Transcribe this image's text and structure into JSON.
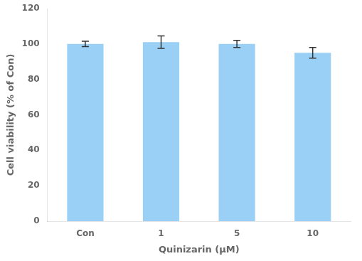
{
  "chart_data": {
    "type": "bar",
    "categories": [
      "Con",
      "1",
      "5",
      "10"
    ],
    "values": [
      100.0,
      101.0,
      100.0,
      95.0
    ],
    "errors": [
      1.5,
      3.5,
      2.0,
      3.0
    ],
    "xlabel": "Quinizarin (μM)",
    "ylabel": "Cell viability (% of Con)",
    "ylim": [
      0,
      120
    ],
    "yticks": [
      0,
      20,
      40,
      60,
      80,
      100,
      120
    ],
    "grid": false
  }
}
